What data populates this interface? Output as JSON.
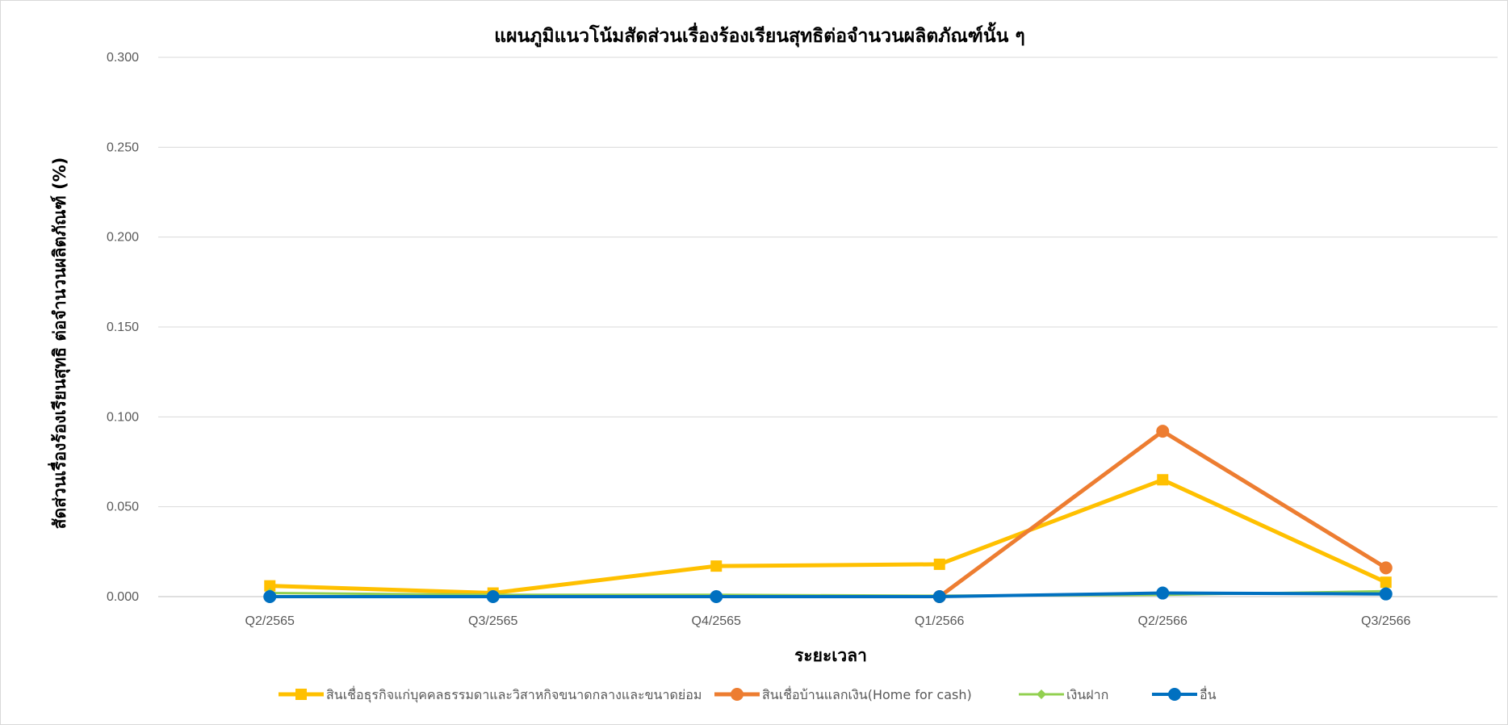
{
  "chart_data": {
    "type": "line",
    "title": "แผนภูมิแนวโน้มสัดส่วนเรื่องร้องเรียนสุทธิต่อจำนวนผลิตภัณฑ์นั้น ๆ",
    "xlabel": "ระยะเวลา",
    "ylabel": "สัดส่วนเรื่องร้องเรียนสุทธิ ต่อจำนวนผลิตภัณฑ์ (%)",
    "categories": [
      "Q2/2565",
      "Q3/2565",
      "Q4/2565",
      "Q1/2566",
      "Q2/2566",
      "Q3/2566"
    ],
    "ylim": [
      0,
      0.3
    ],
    "yticks": [
      "0.000",
      "0.050",
      "0.100",
      "0.150",
      "0.200",
      "0.250",
      "0.300"
    ],
    "ytick_values": [
      0,
      0.05,
      0.1,
      0.15,
      0.2,
      0.25,
      0.3
    ],
    "grid": true,
    "legend_position": "bottom",
    "series": [
      {
        "name": "สินเชื่อธุรกิจแก่บุคคลธรรมดาและวิสาหกิจขนาดกลางและขนาดย่อม",
        "color": "#FFC000",
        "marker": "square",
        "values": [
          0.006,
          0.002,
          0.017,
          0.018,
          0.065,
          0.008
        ]
      },
      {
        "name": "สินเชื่อบ้านแลกเงิน(Home for cash)",
        "color": "#ED7D31",
        "marker": "circle",
        "values": [
          null,
          null,
          null,
          0.0,
          0.092,
          0.016
        ]
      },
      {
        "name": "เงินฝาก",
        "color": "#92D050",
        "marker": "diamond",
        "values": [
          0.002,
          0.001,
          0.001,
          0.0005,
          0.001,
          0.003
        ]
      },
      {
        "name": "อื่น",
        "color": "#0070C0",
        "marker": "circle",
        "values": [
          0.0,
          0.0,
          0.0,
          0.0,
          0.002,
          0.0015
        ]
      }
    ]
  }
}
